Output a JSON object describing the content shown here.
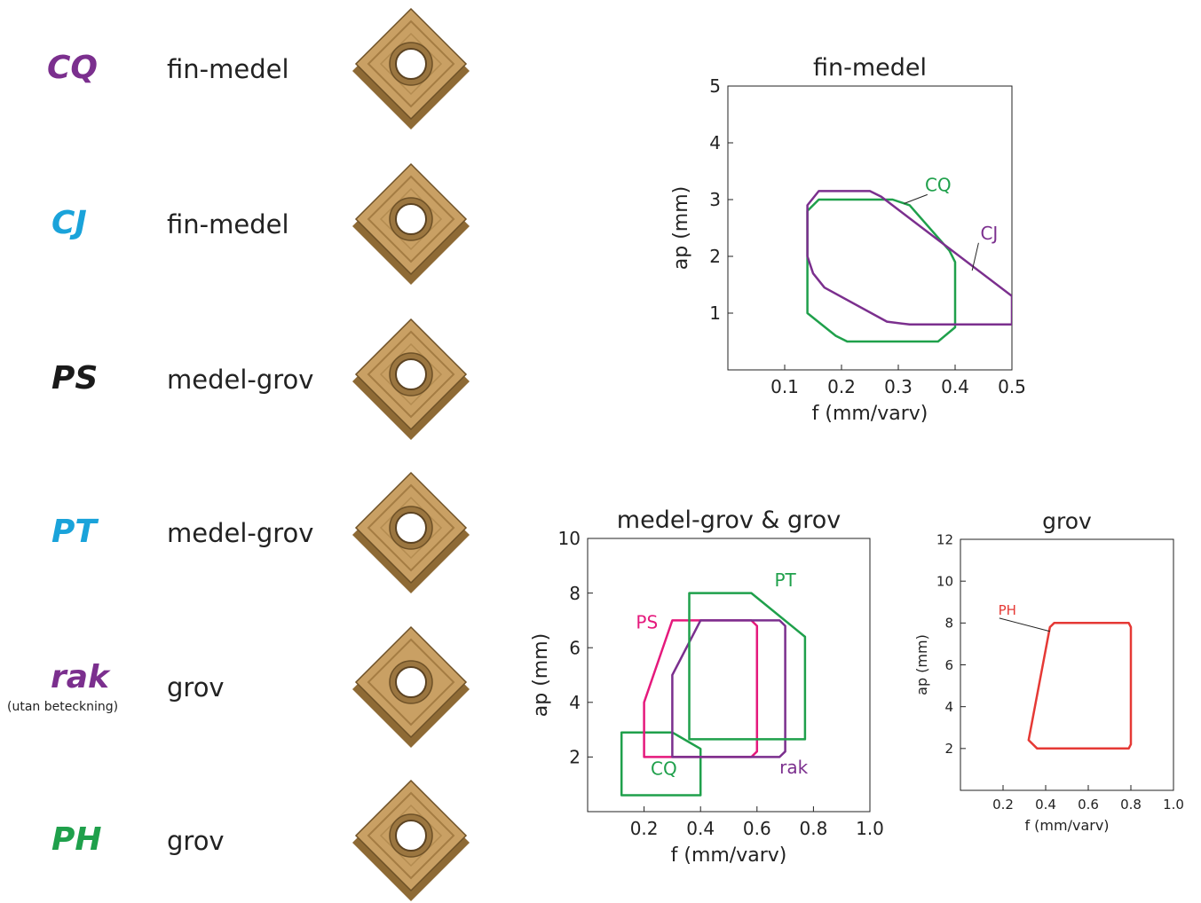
{
  "colors": {
    "purple": "#7B2F8E",
    "blue": "#1AA3DA",
    "dark": "#1A1A1A",
    "green": "#1FA04B",
    "magenta": "#E5197C",
    "red": "#E53935",
    "insert_gold": "#C9A064",
    "insert_dark": "#8E6A35"
  },
  "inserts": [
    {
      "code": "CQ",
      "category": "fin-medel",
      "note": "",
      "code_color": "#7B2F8E",
      "icon": "insert-icon"
    },
    {
      "code": "CJ",
      "category": "fin-medel",
      "note": "",
      "code_color": "#1AA3DA",
      "icon": "insert-icon"
    },
    {
      "code": "PS",
      "category": "medel-grov",
      "note": "",
      "code_color": "#1A1A1A",
      "icon": "insert-icon"
    },
    {
      "code": "PT",
      "category": "medel-grov",
      "note": "",
      "code_color": "#1AA3DA",
      "icon": "insert-icon"
    },
    {
      "code": "rak",
      "category": "grov",
      "note": "(utan beteckning)",
      "code_color": "#7B2F8E",
      "icon": "insert-icon"
    },
    {
      "code": "PH",
      "category": "grov",
      "note": "",
      "code_color": "#1FA04B",
      "icon": "insert-icon"
    }
  ],
  "chart_data": [
    {
      "type": "area",
      "title": "fin-medel",
      "xlabel": "f  (mm/varv)",
      "ylabel": "ap (mm)",
      "xlim": [
        0,
        0.5
      ],
      "ylim": [
        0,
        5
      ],
      "xticks": [
        "0.1",
        "0.2",
        "0.3",
        "0.4",
        "0.5"
      ],
      "yticks": [
        "1",
        "2",
        "3",
        "4",
        "5"
      ],
      "grid": false,
      "series": [
        {
          "name": "CQ",
          "color": "#1FA04B",
          "points": [
            [
              0.14,
              2.8
            ],
            [
              0.16,
              3.0
            ],
            [
              0.29,
              3.0
            ],
            [
              0.32,
              2.9
            ],
            [
              0.39,
              2.1
            ],
            [
              0.4,
              1.9
            ],
            [
              0.4,
              0.75
            ],
            [
              0.37,
              0.5
            ],
            [
              0.21,
              0.5
            ],
            [
              0.19,
              0.6
            ],
            [
              0.14,
              1.0
            ]
          ]
        },
        {
          "name": "CJ",
          "color": "#7B2F8E",
          "points": [
            [
              0.5,
              0.8
            ],
            [
              0.32,
              0.8
            ],
            [
              0.28,
              0.85
            ],
            [
              0.17,
              1.45
            ],
            [
              0.15,
              1.7
            ],
            [
              0.14,
              2.0
            ],
            [
              0.14,
              2.9
            ],
            [
              0.16,
              3.15
            ],
            [
              0.25,
              3.15
            ],
            [
              0.27,
              3.05
            ],
            [
              0.5,
              1.3
            ]
          ]
        }
      ],
      "annotations": [
        {
          "text": "CQ",
          "color": "#1FA04B",
          "at": [
            0.37,
            3.15
          ],
          "pointer": [
            0.31,
            2.93
          ]
        },
        {
          "text": "CJ",
          "color": "#7B2F8E",
          "at": [
            0.46,
            2.3
          ],
          "pointer": [
            0.43,
            1.75
          ]
        }
      ]
    },
    {
      "type": "area",
      "title": "medel-grov & grov",
      "xlabel": "f  (mm/varv)",
      "ylabel": "ap (mm)",
      "xlim": [
        0,
        1.0
      ],
      "ylim": [
        0,
        10
      ],
      "xticks": [
        "0.2",
        "0.4",
        "0.6",
        "0.8",
        "1.0"
      ],
      "yticks": [
        "2",
        "4",
        "6",
        "8",
        "10"
      ],
      "grid": false,
      "series": [
        {
          "name": "CQ",
          "color": "#1FA04B",
          "points": [
            [
              0.12,
              0.6
            ],
            [
              0.12,
              2.9
            ],
            [
              0.3,
              2.9
            ],
            [
              0.4,
              2.3
            ],
            [
              0.4,
              0.6
            ]
          ]
        },
        {
          "name": "PS",
          "color": "#E5197C",
          "points": [
            [
              0.2,
              2.0
            ],
            [
              0.2,
              4.0
            ],
            [
              0.3,
              7.0
            ],
            [
              0.58,
              7.0
            ],
            [
              0.6,
              6.8
            ],
            [
              0.6,
              2.2
            ],
            [
              0.58,
              2.0
            ]
          ]
        },
        {
          "name": "rak",
          "color": "#7B2F8E",
          "points": [
            [
              0.3,
              2.0
            ],
            [
              0.3,
              5.0
            ],
            [
              0.4,
              7.0
            ],
            [
              0.68,
              7.0
            ],
            [
              0.7,
              6.8
            ],
            [
              0.7,
              2.2
            ],
            [
              0.68,
              2.0
            ]
          ]
        },
        {
          "name": "PT",
          "color": "#1FA04B",
          "points": [
            [
              0.36,
              2.65
            ],
            [
              0.36,
              8.0
            ],
            [
              0.58,
              8.0
            ],
            [
              0.77,
              6.4
            ],
            [
              0.77,
              2.65
            ]
          ]
        }
      ],
      "annotations": [
        {
          "text": "PT",
          "color": "#1FA04B",
          "at": [
            0.7,
            8.25
          ]
        },
        {
          "text": "PS",
          "color": "#E5197C",
          "at": [
            0.21,
            6.7
          ]
        },
        {
          "text": "CQ",
          "color": "#1FA04B",
          "at": [
            0.27,
            1.35
          ]
        },
        {
          "text": "rak",
          "color": "#7B2F8E",
          "at": [
            0.73,
            1.4
          ]
        }
      ]
    },
    {
      "type": "area",
      "title": "grov",
      "xlabel": "f  (mm/varv)",
      "ylabel": "ap (mm)",
      "xlim": [
        0,
        1.0
      ],
      "ylim": [
        0,
        12
      ],
      "xticks": [
        "0.2",
        "0.4",
        "0.6",
        "0.8",
        "1.0"
      ],
      "yticks": [
        "2",
        "4",
        "6",
        "8",
        "10",
        "12"
      ],
      "grid": false,
      "series": [
        {
          "name": "PH",
          "color": "#E53935",
          "points": [
            [
              0.36,
              2.0
            ],
            [
              0.79,
              2.0
            ],
            [
              0.8,
              2.2
            ],
            [
              0.8,
              7.8
            ],
            [
              0.79,
              8.0
            ],
            [
              0.44,
              8.0
            ],
            [
              0.42,
              7.8
            ],
            [
              0.32,
              2.4
            ]
          ]
        }
      ],
      "annotations": [
        {
          "text": "PH",
          "color": "#E53935",
          "at": [
            0.22,
            8.4
          ],
          "pointer": [
            0.42,
            7.6
          ]
        }
      ]
    }
  ]
}
